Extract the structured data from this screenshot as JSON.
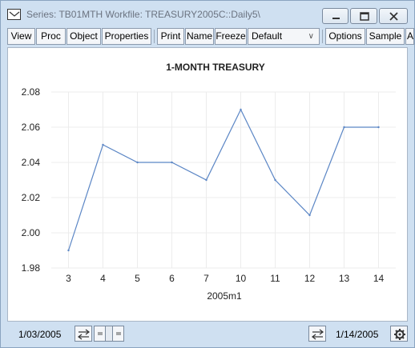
{
  "window": {
    "title": "Series: TB01MTH   Workfile: TREASURY2005C::Daily5\\"
  },
  "toolbar": {
    "view": "View",
    "proc": "Proc",
    "object": "Object",
    "properties": "Properties",
    "print": "Print",
    "name": "Name",
    "freeze": "Freeze",
    "display_mode": "Default",
    "options": "Options",
    "sample": "Sample",
    "overflow": "Ar"
  },
  "status": {
    "start_date": "1/03/2005",
    "end_date": "1/14/2005"
  },
  "icons": {
    "app": "series-window-icon",
    "minimize": "minimize-icon",
    "maximize": "maximize-icon",
    "close": "close-icon",
    "scroll_left": "swap-arrows-icon",
    "scroll_right": "swap-arrows-icon",
    "settings": "gear-icon"
  },
  "colors": {
    "line": "#5b86c5",
    "chrome": "#cfe0f1"
  },
  "chart_data": {
    "type": "line",
    "title": "1-MONTH TREASURY",
    "xlabel": "2005m1",
    "ylabel": "",
    "x": [
      "3",
      "4",
      "5",
      "6",
      "7",
      "10",
      "11",
      "12",
      "13",
      "14"
    ],
    "series": [
      {
        "values": [
          1.99,
          2.05,
          2.04,
          2.04,
          2.03,
          2.07,
          2.03,
          2.01,
          2.06,
          2.06
        ]
      }
    ],
    "yticks": [
      "1.98",
      "2.00",
      "2.02",
      "2.04",
      "2.06",
      "2.08"
    ],
    "ylim": [
      1.98,
      2.08
    ],
    "grid": true,
    "legend": "none"
  }
}
